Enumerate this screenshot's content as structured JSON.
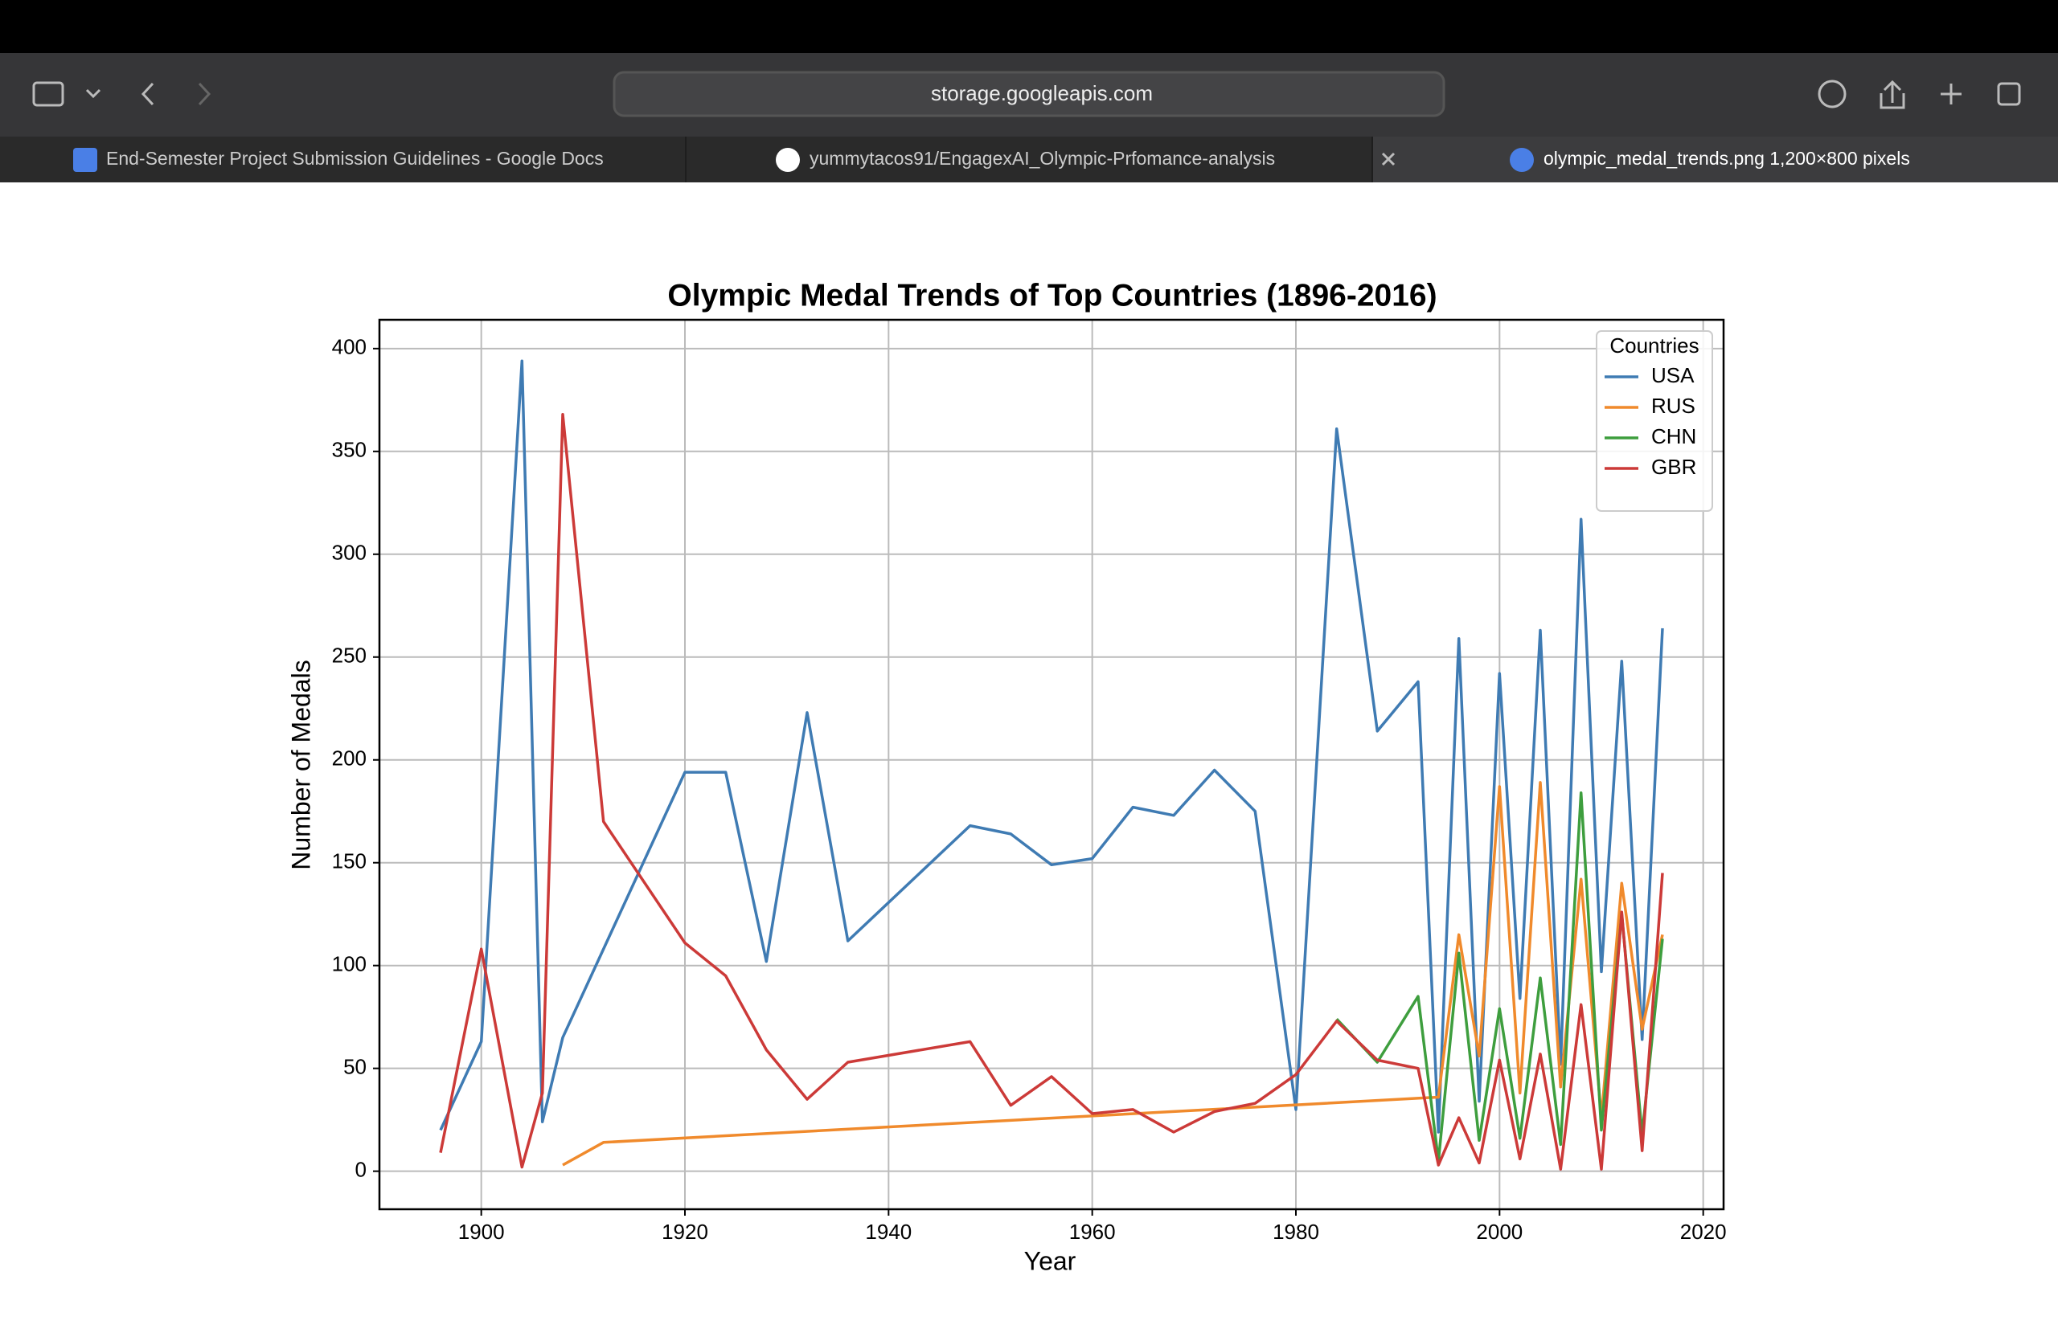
{
  "browser": {
    "address": "storage.googleapis.com",
    "tabs": [
      "End-Semester Project Submission Guidelines - Google Docs",
      "yummytacos91/EngagexAI_Olympic-Prfomance-analysis",
      "olympic_medal_trends.png 1,200×800 pixels"
    ]
  },
  "chart_data": {
    "type": "line",
    "title": "Olympic Medal Trends of Top Countries (1896-2016)",
    "x_label": "Year",
    "y_label": "Number of Medals",
    "legend_title": "Countries",
    "legend": "upper right",
    "grid": true,
    "xlim": [
      1890,
      2022
    ],
    "xticks": [
      1900,
      1920,
      1940,
      1960,
      1980,
      2000,
      2020
    ],
    "ylim": [
      -18.5,
      414
    ],
    "yticks": [
      0,
      50,
      100,
      150,
      200,
      250,
      300,
      350,
      400
    ],
    "series": [
      {
        "name": "USA",
        "color": "#3f7bb3",
        "x": [
          1896,
          1900,
          1904,
          1906,
          1908,
          1920,
          1924,
          1928,
          1932,
          1936,
          1948,
          1952,
          1956,
          1960,
          1964,
          1968,
          1972,
          1976,
          1980,
          1984,
          1988,
          1992,
          1994,
          1996,
          1998,
          2000,
          2002,
          2004,
          2006,
          2008,
          2010,
          2012,
          2014,
          2016
        ],
        "values": [
          20,
          63,
          394,
          24,
          65,
          194,
          194,
          102,
          223,
          112,
          168,
          164,
          149,
          152,
          177,
          173,
          195,
          175,
          30,
          361,
          214,
          238,
          19,
          259,
          34,
          242,
          84,
          263,
          52,
          317,
          97,
          248,
          64,
          264
        ]
      },
      {
        "name": "RUS",
        "color": "#f08a2c",
        "x": [
          1908,
          1912,
          1994,
          1996,
          1998,
          2000,
          2002,
          2004,
          2006,
          2008,
          2010,
          2012,
          2014,
          2016
        ],
        "values": [
          3,
          14,
          36,
          115,
          56,
          187,
          38,
          189,
          41,
          142,
          26,
          140,
          69,
          115
        ]
      },
      {
        "name": "CHN",
        "color": "#3e9e3e",
        "x": [
          1984,
          1988,
          1992,
          1994,
          1996,
          1998,
          2000,
          2002,
          2004,
          2006,
          2008,
          2010,
          2012,
          2014,
          2016
        ],
        "values": [
          74,
          53,
          85,
          5,
          106,
          15,
          79,
          16,
          94,
          13,
          184,
          20,
          125,
          18,
          113
        ]
      },
      {
        "name": "GBR",
        "color": "#cc3a38",
        "x": [
          1896,
          1900,
          1904,
          1906,
          1908,
          1912,
          1920,
          1924,
          1928,
          1932,
          1936,
          1948,
          1952,
          1956,
          1960,
          1964,
          1968,
          1972,
          1976,
          1980,
          1984,
          1988,
          1992,
          1994,
          1996,
          1998,
          2000,
          2002,
          2004,
          2006,
          2008,
          2010,
          2012,
          2014,
          2016
        ],
        "values": [
          9,
          108,
          2,
          38,
          368,
          170,
          111,
          95,
          59,
          35,
          53,
          63,
          32,
          46,
          28,
          30,
          19,
          29,
          33,
          47,
          73,
          54,
          50,
          3,
          26,
          4,
          54,
          6,
          57,
          1,
          81,
          1,
          126,
          10,
          145
        ]
      }
    ]
  }
}
